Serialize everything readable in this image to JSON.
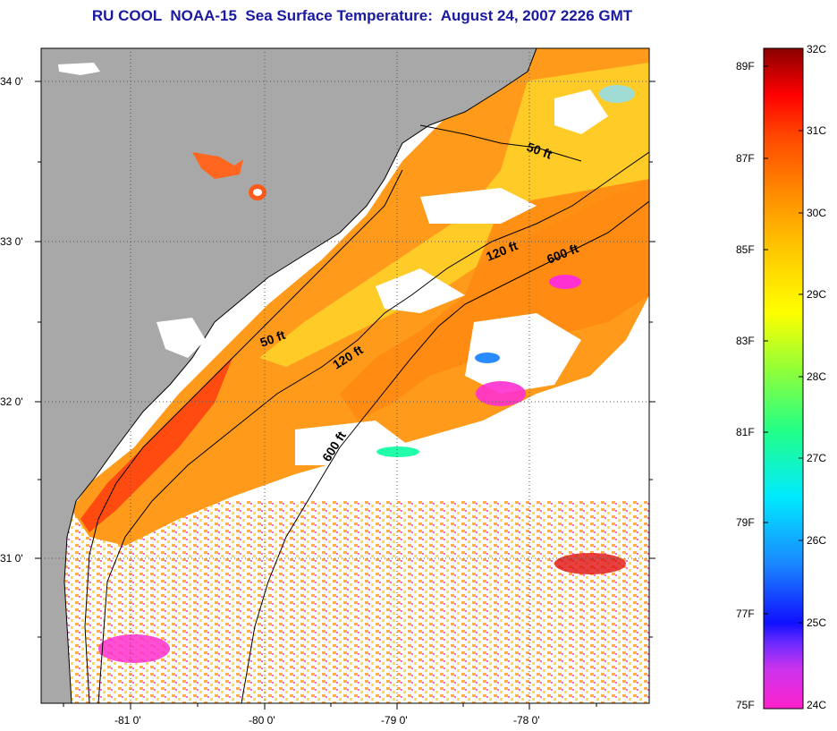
{
  "title": {
    "source": "RU COOL",
    "satellite": "NOAA-15",
    "product": "Sea Surface Temperature:",
    "datetime": "August 24, 2007 2226 GMT"
  },
  "axes": {
    "lat_labels": [
      "34 0'",
      "33 0'",
      "32 0'",
      "31 0'"
    ],
    "lon_labels": [
      "-81 0'",
      "-80 0'",
      "-79 0'",
      "-78 0'"
    ]
  },
  "depth_contours": [
    {
      "label": "50 ft",
      "id": "north"
    },
    {
      "label": "120 ft",
      "id": "north"
    },
    {
      "label": "600 ft",
      "id": "north"
    },
    {
      "label": "50 ft",
      "id": "south"
    },
    {
      "label": "120 ft",
      "id": "south"
    },
    {
      "label": "600 ft",
      "id": "south"
    }
  ],
  "colorbar": {
    "celsius": [
      "32C",
      "31C",
      "30C",
      "29C",
      "28C",
      "27C",
      "26C",
      "25C",
      "24C"
    ],
    "fahrenheit": [
      "89F",
      "87F",
      "85F",
      "83F",
      "81F",
      "79F",
      "77F",
      "75F"
    ],
    "stops": [
      "#ff22cc",
      "#9a33ff",
      "#1010ff",
      "#1a88ff",
      "#00eaff",
      "#22ff88",
      "#99ff33",
      "#ffff00",
      "#ffc400",
      "#ff8c00",
      "#ff4400",
      "#ff0000",
      "#8a0000"
    ]
  },
  "colors": {
    "land": "#a8a8a8",
    "ocean_warm": "#ff9a1a",
    "title": "#1a1aa0"
  }
}
